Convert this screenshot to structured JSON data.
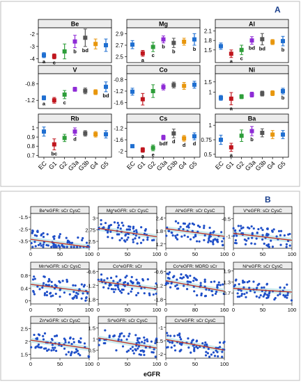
{
  "figure": {
    "panel_a_label": "A",
    "panel_b_label": "B",
    "b_xlabel": "eGFR"
  },
  "colors": {
    "groups": [
      "#1f6fd1",
      "#c0161e",
      "#2e9e3a",
      "#8e2bd6",
      "#555555",
      "#e8960c",
      "#1f6fd1"
    ],
    "trend": "#c0392b",
    "points": "#1f4fc8",
    "ci_band": "#bfe6ea",
    "strip": "#ececec"
  },
  "chart_data": [
    {
      "type": "errorbar",
      "panel": "A",
      "categories": [
        "EC",
        "G1",
        "G2",
        "G3a",
        "G3b",
        "G4",
        "G5"
      ],
      "subplots": [
        {
          "title": "Be",
          "yticks": [
            -2,
            -3,
            -4
          ],
          "ylim": [
            -4.3,
            -1.5
          ],
          "means": [
            -3.7,
            -3.8,
            -3.4,
            -2.6,
            -2.3,
            -2.8,
            -2.9
          ],
          "errors": [
            0.2,
            0.2,
            0.6,
            0.5,
            0.7,
            0.4,
            0.5
          ],
          "labels": [
            "a",
            "c",
            "",
            "b",
            "bd",
            "",
            ""
          ]
        },
        {
          "title": "Mg",
          "yticks": [
            2.9,
            2.7,
            2.5
          ],
          "ylim": [
            2.4,
            3.0
          ],
          "means": [
            2.71,
            2.56,
            2.67,
            2.8,
            2.74,
            2.76,
            2.8
          ],
          "errors": [
            0.07,
            0.05,
            0.08,
            0.06,
            0.08,
            0.06,
            0.1
          ],
          "labels": [
            "",
            "a",
            "c",
            "b",
            "b",
            "",
            "b"
          ]
        },
        {
          "title": "Al",
          "yticks": [
            2.1,
            1.8,
            1.5
          ],
          "ylim": [
            1.1,
            2.2
          ],
          "means": [
            1.62,
            1.38,
            1.5,
            1.8,
            1.84,
            1.75,
            1.78
          ],
          "errors": [
            0.1,
            0.12,
            0.15,
            0.12,
            0.18,
            0.08,
            0.15
          ],
          "labels": [
            "",
            "a",
            "c",
            "bd",
            "bd",
            "",
            "b"
          ]
        },
        {
          "title": "V",
          "yticks": [
            -0.8,
            -1.2
          ],
          "ylim": [
            -1.4,
            -0.55
          ],
          "means": [
            -1.14,
            -1.2,
            -1.06,
            -0.93,
            -0.97,
            -1.0,
            -0.87
          ],
          "errors": [
            0.05,
            0.07,
            0.1,
            0.05,
            0.07,
            0.06,
            0.12
          ],
          "labels": [
            "a",
            "",
            "c",
            "",
            "",
            "",
            "bd"
          ]
        },
        {
          "title": "Co",
          "yticks": [
            -0.8,
            -1.2,
            -1.6
          ],
          "ylim": [
            -1.8,
            -0.6
          ],
          "means": [
            -1.22,
            -1.48,
            -1.2,
            -1.06,
            -0.99,
            -1.02,
            -0.98
          ],
          "errors": [
            0.12,
            0.2,
            0.22,
            0.1,
            0.1,
            0.12,
            0.12
          ],
          "labels": [
            "",
            "",
            "",
            "",
            "",
            "",
            ""
          ]
        },
        {
          "title": "Ni",
          "yticks": [
            1.5,
            1.0
          ],
          "ylim": [
            0.2,
            1.9
          ],
          "means": [
            0.72,
            0.68,
            0.78,
            0.88,
            0.93,
            0.95,
            1.05
          ],
          "errors": [
            0.12,
            0.3,
            0.1,
            0.12,
            0.12,
            0.12,
            0.14
          ],
          "labels": [
            "",
            "a",
            "",
            "",
            "",
            "",
            "b"
          ]
        },
        {
          "title": "Rb",
          "yticks": [
            1.0,
            0.9,
            0.8,
            0.7
          ],
          "ylim": [
            0.68,
            1.06
          ],
          "means": [
            0.96,
            0.82,
            0.89,
            0.96,
            0.94,
            0.93,
            0.93
          ],
          "errors": [
            0.05,
            0.06,
            0.04,
            0.04,
            0.03,
            0.03,
            0.04
          ],
          "labels": [
            "",
            "bc",
            "",
            "d",
            "",
            "",
            ""
          ]
        },
        {
          "title": "Cs",
          "yticks": [
            -1.2,
            -1.6,
            -2.0
          ],
          "ylim": [
            -2.2,
            -1.0
          ],
          "means": [
            -1.82,
            -1.95,
            -1.88,
            -1.52,
            -1.38,
            -1.55,
            -1.48
          ],
          "errors": [
            0.05,
            0.08,
            0.1,
            0.08,
            0.15,
            0.1,
            0.12
          ],
          "labels": [
            "",
            "a",
            "e",
            "bdf",
            "d",
            "d",
            "d"
          ]
        },
        {
          "title": "Ba",
          "yticks": [
            1.0,
            0.75,
            0.5
          ],
          "ylim": [
            0.45,
            1.05
          ],
          "means": [
            0.75,
            0.62,
            0.82,
            0.9,
            0.87,
            0.84,
            0.84
          ],
          "errors": [
            0.08,
            0.07,
            0.1,
            0.08,
            0.07,
            0.07,
            0.07
          ],
          "labels": [
            "",
            "a",
            "",
            "b",
            "",
            "",
            ""
          ]
        }
      ]
    },
    {
      "type": "scatter",
      "panel": "B",
      "xlabel": "eGFR",
      "subplots": [
        {
          "title": "Be*eGFR: sCr CysC",
          "xlim": [
            0,
            100
          ],
          "xticks": [
            0,
            50,
            100
          ],
          "ylim": [
            -4.1,
            -1.2
          ],
          "yticks": [
            -1.5,
            -2.5,
            -3.5
          ],
          "trend": [
            [
              0,
              -3.35
            ],
            [
              100,
              -4.0
            ]
          ]
        },
        {
          "title": "Mg*eGFR: sCr CysC",
          "xlim": [
            0,
            100
          ],
          "xticks": [
            0,
            50,
            100
          ],
          "ylim": [
            2.35,
            3.1
          ],
          "yticks": [
            3.0,
            2.75,
            2.5
          ],
          "trend": [
            [
              0,
              2.78
            ],
            [
              100,
              2.6
            ]
          ]
        },
        {
          "title": "Al*eGFR: sCr CysC",
          "xlim": [
            0,
            100
          ],
          "xticks": [
            0,
            50,
            100
          ],
          "ylim": [
            1.0,
            2.6
          ],
          "yticks": [
            2.4,
            1.8,
            1.2
          ],
          "trend": [
            [
              0,
              1.9
            ],
            [
              100,
              1.55
            ]
          ]
        },
        {
          "title": "V*eGFR: sCr CysC",
          "xlim": [
            0,
            100
          ],
          "xticks": [
            0,
            50,
            100
          ],
          "ylim": [
            -1.35,
            -0.35
          ],
          "yticks": [
            -0.5,
            -1.0
          ],
          "trend": [
            [
              0,
              -0.92
            ],
            [
              100,
              -1.12
            ]
          ]
        },
        {
          "title": "Mn*eGFR: sCr CysC",
          "xlim": [
            0,
            100
          ],
          "xticks": [
            0,
            50,
            100
          ],
          "ylim": [
            -0.1,
            1.0
          ],
          "yticks": [
            0.8,
            0.4,
            0.0
          ],
          "trend": [
            [
              0,
              0.52
            ],
            [
              100,
              0.28
            ]
          ]
        },
        {
          "title": "Co*eGFR: sCr",
          "xlim": [
            0,
            100
          ],
          "xticks": [
            0,
            50,
            100
          ],
          "ylim": [
            -2.0,
            -0.5
          ],
          "yticks": [
            -0.6,
            -1.2,
            -1.8
          ],
          "trend": [
            [
              0,
              -1.02
            ],
            [
              100,
              -1.35
            ]
          ]
        },
        {
          "title": "Co*eGFR: MDRD sCr",
          "xlim": [
            0,
            160
          ],
          "xticks": [
            0,
            80,
            160
          ],
          "ylim": [
            -2.0,
            -0.5
          ],
          "yticks": [
            -0.6,
            -1.2,
            -1.8
          ],
          "trend": [
            [
              0,
              -1.0
            ],
            [
              160,
              -1.45
            ]
          ]
        },
        {
          "title": "Ni*eGFR: sCr CysC",
          "xlim": [
            0,
            100
          ],
          "xticks": [
            0,
            50,
            100
          ],
          "ylim": [
            0.1,
            2.0
          ],
          "yticks": [
            1.9,
            1.3,
            0.7
          ],
          "trend": [
            [
              0,
              0.95
            ],
            [
              100,
              0.75
            ]
          ]
        },
        {
          "title": "Zn*eGFR: sCr CysC",
          "xlim": [
            0,
            100
          ],
          "xticks": [
            0,
            50,
            100
          ],
          "ylim": [
            1.35,
            2.7
          ],
          "yticks": [
            2.5,
            2.0,
            1.5
          ],
          "trend": [
            [
              0,
              2.05
            ],
            [
              100,
              1.72
            ]
          ]
        },
        {
          "title": "Sr*eGFR: sCr CysC",
          "xlim": [
            0,
            100
          ],
          "xticks": [
            0,
            50,
            100
          ],
          "ylim": [
            0.15,
            1.7
          ],
          "yticks": [
            1.5,
            1.0,
            0.5
          ],
          "trend": [
            [
              0,
              1.05
            ],
            [
              100,
              0.6
            ]
          ]
        },
        {
          "title": "Cs*eGFR: sCr CysC",
          "xlim": [
            0,
            100
          ],
          "xticks": [
            0,
            50,
            100
          ],
          "ylim": [
            -2.15,
            -0.85
          ],
          "yticks": [
            -1.0,
            -1.5,
            -2.0
          ],
          "trend": [
            [
              0,
              -1.45
            ],
            [
              100,
              -1.85
            ]
          ]
        }
      ]
    }
  ]
}
